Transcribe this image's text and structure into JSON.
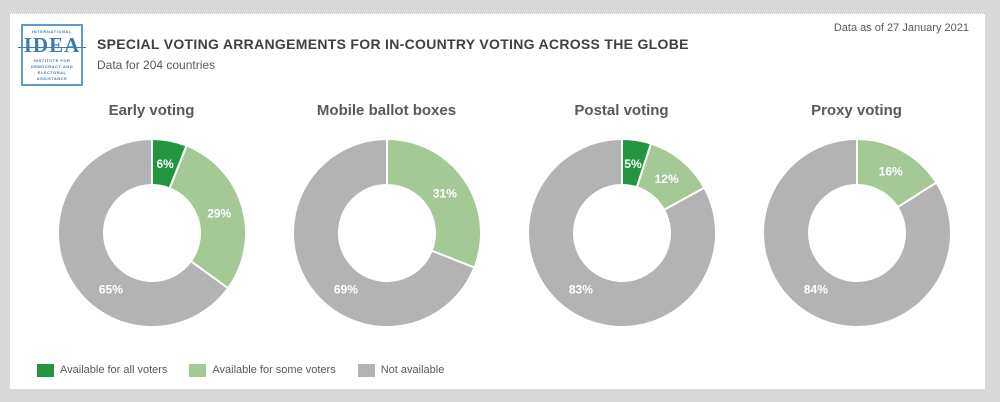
{
  "header": {
    "logo": {
      "top_text": "INTERNATIONAL",
      "acronym": "IDEA",
      "bottom_text": "INSTITUTE FOR DEMOCRACY AND ELECTORAL ASSISTANCE"
    },
    "title": "SPECIAL VOTING ARRANGEMENTS FOR IN-COUNTRY VOTING ACROSS THE GLOBE",
    "subtitle": "Data for 204 countries",
    "date_note": "Data as of 27 January 2021"
  },
  "colors": {
    "available_all": "#22963f",
    "available_some": "#a4c994",
    "not_available": "#b3b3b3",
    "slice_label": "#ffffff",
    "page_background": "#d9d9d9",
    "card_background": "#ffffff"
  },
  "legend": [
    {
      "key": "all-voters",
      "label": "Available for all voters",
      "color": "#22963f"
    },
    {
      "key": "some-voters",
      "label": "Available for some voters",
      "color": "#a4c994"
    },
    {
      "key": "not-available",
      "label": "Not available",
      "color": "#b3b3b3"
    }
  ],
  "chart_data": {
    "type": "pie",
    "subtype": "donut",
    "unit": "%",
    "start_angle_deg": 0,
    "direction": "clockwise",
    "hole_radius_ratio": 0.51,
    "legend_position": "bottom-left",
    "categories": [
      "Available for all voters",
      "Available for some voters",
      "Not available"
    ],
    "series_colors": [
      "#22963f",
      "#a4c994",
      "#b3b3b3"
    ],
    "charts": [
      {
        "title": "Early voting",
        "values": [
          6,
          29,
          65
        ]
      },
      {
        "title": "Mobile ballot boxes",
        "values": [
          0,
          31,
          69
        ]
      },
      {
        "title": "Postal voting",
        "values": [
          5,
          12,
          83
        ]
      },
      {
        "title": "Proxy voting",
        "values": [
          0,
          16,
          84
        ]
      }
    ]
  }
}
